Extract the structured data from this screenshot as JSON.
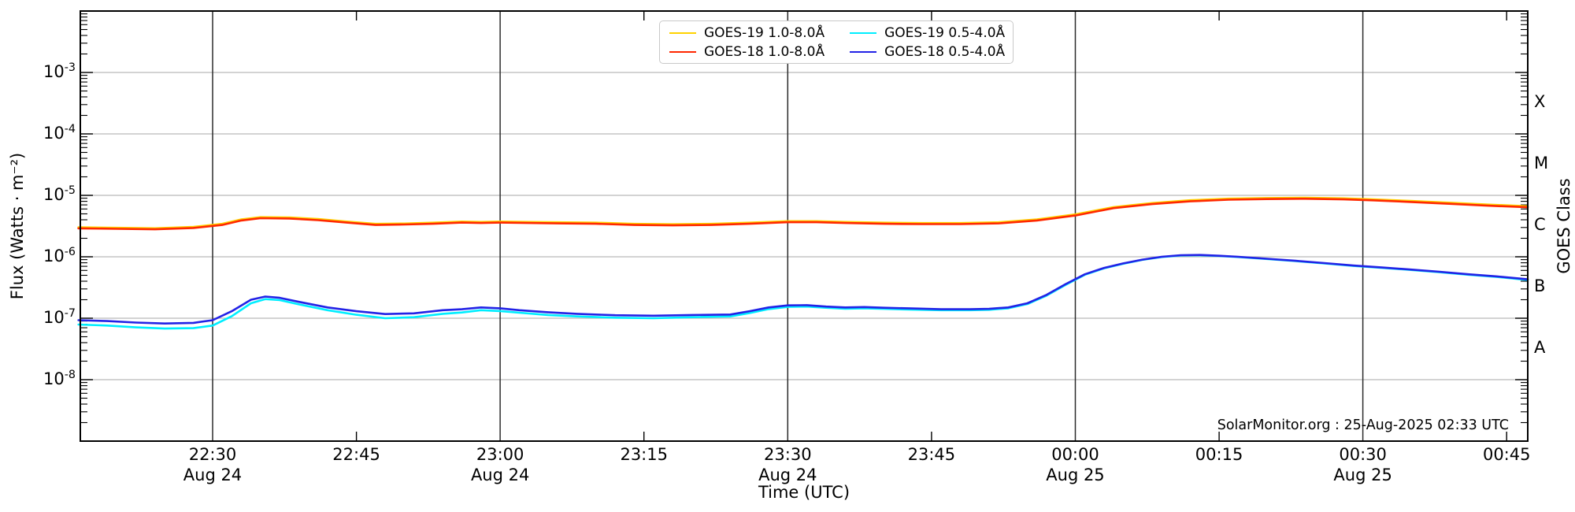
{
  "watermark": "SolarMonitor.org : 25-Aug-2025 02:33 UTC",
  "legend": {
    "items": [
      {
        "label": "GOES-19 1.0-8.0Å",
        "color": "#ffd200",
        "series": "goes19_long"
      },
      {
        "label": "GOES-18 1.0-8.0Å",
        "color": "#ff2800",
        "series": "goes18_long"
      },
      {
        "label": "GOES-19 0.5-4.0Å",
        "color": "#00eeff",
        "series": "goes19_short"
      },
      {
        "label": "GOES-18 0.5-4.0Å",
        "color": "#2222e6",
        "series": "goes18_short"
      }
    ]
  },
  "chart_data": {
    "type": "line",
    "title": "",
    "xlabel": "Time (UTC)",
    "ylabel_left": "Flux (Watts · m⁻²)",
    "ylabel_right": "GOES Class",
    "x_unit": "minutes since 22:00 UTC on Aug 24 (2025)",
    "x_range_minutes": [
      16.2,
      167.2
    ],
    "x_range_utc": [
      "22:16",
      "00:47"
    ],
    "y_range": [
      1e-09,
      0.01
    ],
    "y_scale": "log",
    "grid": {
      "vertical_dark_at_ticks": true,
      "horizontal_light_at_decades": true
    },
    "legend_position": "top-center",
    "x_ticks": [
      {
        "t": 30,
        "label": "22:30",
        "day": "Aug 24",
        "grid": true
      },
      {
        "t": 45,
        "label": "22:45",
        "day": "",
        "grid": false
      },
      {
        "t": 60,
        "label": "23:00",
        "day": "Aug 24",
        "grid": true
      },
      {
        "t": 75,
        "label": "23:15",
        "day": "",
        "grid": false
      },
      {
        "t": 90,
        "label": "23:30",
        "day": "Aug 24",
        "grid": true
      },
      {
        "t": 105,
        "label": "23:45",
        "day": "",
        "grid": false
      },
      {
        "t": 120,
        "label": "00:00",
        "day": "Aug 25",
        "grid": true
      },
      {
        "t": 135,
        "label": "00:15",
        "day": "",
        "grid": false
      },
      {
        "t": 150,
        "label": "00:30",
        "day": "Aug 25",
        "grid": true
      },
      {
        "t": 165,
        "label": "00:45",
        "day": "",
        "grid": false
      }
    ],
    "y_ticks": [
      {
        "exp": -3,
        "base": "10",
        "exp_text": "-3"
      },
      {
        "exp": -4,
        "base": "10",
        "exp_text": "-4"
      },
      {
        "exp": -5,
        "base": "10",
        "exp_text": "-5"
      },
      {
        "exp": -6,
        "base": "10",
        "exp_text": "-6"
      },
      {
        "exp": -7,
        "base": "10",
        "exp_text": "-7"
      },
      {
        "exp": -8,
        "base": "10",
        "exp_text": "-8"
      }
    ],
    "goes_class_labels": [
      {
        "label": "X",
        "exp": -3.5
      },
      {
        "label": "M",
        "exp": -4.5
      },
      {
        "label": "C",
        "exp": -5.5
      },
      {
        "label": "B",
        "exp": -6.5
      },
      {
        "label": "A",
        "exp": -7.5
      }
    ],
    "series": [
      {
        "name": "goes19_long",
        "label": "GOES-19 1.0-8.0Å",
        "color": "#ffd200",
        "width": 2.6,
        "points": [
          [
            16,
            3.02e-06
          ],
          [
            20,
            2.96e-06
          ],
          [
            24,
            2.91e-06
          ],
          [
            28,
            3.07e-06
          ],
          [
            31,
            3.43e-06
          ],
          [
            33,
            4.06e-06
          ],
          [
            35,
            4.42e-06
          ],
          [
            38,
            4.37e-06
          ],
          [
            41,
            4.11e-06
          ],
          [
            44,
            3.74e-06
          ],
          [
            47,
            3.43e-06
          ],
          [
            50,
            3.48e-06
          ],
          [
            53,
            3.59e-06
          ],
          [
            56,
            3.74e-06
          ],
          [
            58,
            3.69e-06
          ],
          [
            60,
            3.74e-06
          ],
          [
            63,
            3.69e-06
          ],
          [
            66,
            3.64e-06
          ],
          [
            70,
            3.59e-06
          ],
          [
            74,
            3.43e-06
          ],
          [
            78,
            3.38e-06
          ],
          [
            82,
            3.43e-06
          ],
          [
            86,
            3.59e-06
          ],
          [
            90,
            3.8e-06
          ],
          [
            93,
            3.8e-06
          ],
          [
            96,
            3.69e-06
          ],
          [
            100,
            3.59e-06
          ],
          [
            104,
            3.54e-06
          ],
          [
            108,
            3.54e-06
          ],
          [
            112,
            3.64e-06
          ],
          [
            116,
            4.06e-06
          ],
          [
            120,
            4.9e-06
          ],
          [
            124,
            6.45e-06
          ],
          [
            128,
            7.49e-06
          ],
          [
            132,
            8.32e-06
          ],
          [
            136,
            8.84e-06
          ],
          [
            140,
            9.05e-06
          ],
          [
            144,
            9.15e-06
          ],
          [
            148,
            8.94e-06
          ],
          [
            151,
            8.63e-06
          ],
          [
            155,
            8.11e-06
          ],
          [
            159,
            7.59e-06
          ],
          [
            163,
            7.07e-06
          ],
          [
            167.2,
            6.66e-06
          ]
        ]
      },
      {
        "name": "goes18_long",
        "label": "GOES-18 1.0-8.0Å",
        "color": "#ff2800",
        "width": 2.6,
        "points": [
          [
            16,
            2.9e-06
          ],
          [
            20,
            2.85e-06
          ],
          [
            24,
            2.8e-06
          ],
          [
            28,
            2.95e-06
          ],
          [
            31,
            3.3e-06
          ],
          [
            33,
            3.9e-06
          ],
          [
            35,
            4.25e-06
          ],
          [
            38,
            4.2e-06
          ],
          [
            41,
            3.95e-06
          ],
          [
            44,
            3.6e-06
          ],
          [
            47,
            3.3e-06
          ],
          [
            50,
            3.35e-06
          ],
          [
            53,
            3.45e-06
          ],
          [
            56,
            3.6e-06
          ],
          [
            58,
            3.55e-06
          ],
          [
            60,
            3.6e-06
          ],
          [
            63,
            3.55e-06
          ],
          [
            66,
            3.5e-06
          ],
          [
            70,
            3.45e-06
          ],
          [
            74,
            3.3e-06
          ],
          [
            78,
            3.25e-06
          ],
          [
            82,
            3.3e-06
          ],
          [
            86,
            3.45e-06
          ],
          [
            90,
            3.65e-06
          ],
          [
            93,
            3.65e-06
          ],
          [
            96,
            3.55e-06
          ],
          [
            100,
            3.45e-06
          ],
          [
            104,
            3.4e-06
          ],
          [
            108,
            3.4e-06
          ],
          [
            112,
            3.5e-06
          ],
          [
            116,
            3.9e-06
          ],
          [
            120,
            4.7e-06
          ],
          [
            124,
            6.2e-06
          ],
          [
            128,
            7.2e-06
          ],
          [
            132,
            8e-06
          ],
          [
            136,
            8.5e-06
          ],
          [
            140,
            8.7e-06
          ],
          [
            144,
            8.8e-06
          ],
          [
            148,
            8.6e-06
          ],
          [
            151,
            8.3e-06
          ],
          [
            155,
            7.8e-06
          ],
          [
            159,
            7.3e-06
          ],
          [
            163,
            6.8e-06
          ],
          [
            167.2,
            6.4e-06
          ]
        ]
      },
      {
        "name": "goes19_short",
        "label": "GOES-19 0.5-4.0Å",
        "color": "#00eeff",
        "width": 2.6,
        "points": [
          [
            16,
            7.9e-08
          ],
          [
            19,
            7.6e-08
          ],
          [
            22,
            7.1e-08
          ],
          [
            25,
            6.8e-08
          ],
          [
            28,
            6.9e-08
          ],
          [
            30,
            7.6e-08
          ],
          [
            32,
            1.08e-07
          ],
          [
            34,
            1.75e-07
          ],
          [
            35.5,
            2.05e-07
          ],
          [
            37,
            1.97e-07
          ],
          [
            39,
            1.68e-07
          ],
          [
            42,
            1.35e-07
          ],
          [
            45,
            1.14e-07
          ],
          [
            48,
            1e-07
          ],
          [
            51,
            1.04e-07
          ],
          [
            54,
            1.18e-07
          ],
          [
            56,
            1.24e-07
          ],
          [
            58,
            1.35e-07
          ],
          [
            60,
            1.31e-07
          ],
          [
            62,
            1.23e-07
          ],
          [
            65,
            1.13e-07
          ],
          [
            68,
            1.07e-07
          ],
          [
            72,
            1.02e-07
          ],
          [
            76,
            1e-07
          ],
          [
            80,
            1.04e-07
          ],
          [
            84,
            1.07e-07
          ],
          [
            86,
            1.21e-07
          ],
          [
            88,
            1.41e-07
          ],
          [
            90,
            1.53e-07
          ],
          [
            92,
            1.55e-07
          ],
          [
            94,
            1.48e-07
          ],
          [
            96,
            1.43e-07
          ],
          [
            98,
            1.45e-07
          ],
          [
            100,
            1.42e-07
          ],
          [
            103,
            1.38e-07
          ],
          [
            106,
            1.35e-07
          ],
          [
            109,
            1.35e-07
          ],
          [
            111,
            1.37e-07
          ],
          [
            113,
            1.45e-07
          ],
          [
            115,
            1.7e-07
          ],
          [
            117,
            2.33e-07
          ],
          [
            119,
            3.5e-07
          ],
          [
            121,
            5.1e-07
          ],
          [
            123,
            6.5e-07
          ],
          [
            125,
            7.7e-07
          ],
          [
            127,
            8.9e-07
          ],
          [
            129,
            9.9e-07
          ],
          [
            131,
            1.05e-06
          ],
          [
            133,
            1.06e-06
          ],
          [
            135,
            1.03e-06
          ],
          [
            137,
            9.9e-07
          ],
          [
            140,
            9.2e-07
          ],
          [
            143,
            8.5e-07
          ],
          [
            146,
            7.8e-07
          ],
          [
            149,
            7.1e-07
          ],
          [
            152,
            6.6e-07
          ],
          [
            155,
            6.1e-07
          ],
          [
            158,
            5.6e-07
          ],
          [
            161,
            5.1e-07
          ],
          [
            164,
            4.7e-07
          ],
          [
            167.2,
            4.2e-07
          ]
        ]
      },
      {
        "name": "goes18_short",
        "label": "GOES-18 0.5-4.0Å",
        "color": "#2222e6",
        "width": 2.6,
        "points": [
          [
            16,
            9.3e-08
          ],
          [
            19,
            9e-08
          ],
          [
            22,
            8.5e-08
          ],
          [
            25,
            8.2e-08
          ],
          [
            28,
            8.4e-08
          ],
          [
            30,
            9.3e-08
          ],
          [
            32,
            1.3e-07
          ],
          [
            34,
            2e-07
          ],
          [
            35.5,
            2.25e-07
          ],
          [
            37,
            2.15e-07
          ],
          [
            39,
            1.85e-07
          ],
          [
            42,
            1.5e-07
          ],
          [
            45,
            1.3e-07
          ],
          [
            48,
            1.17e-07
          ],
          [
            51,
            1.2e-07
          ],
          [
            54,
            1.35e-07
          ],
          [
            56,
            1.4e-07
          ],
          [
            58,
            1.5e-07
          ],
          [
            60,
            1.45e-07
          ],
          [
            62,
            1.35e-07
          ],
          [
            65,
            1.25e-07
          ],
          [
            68,
            1.18e-07
          ],
          [
            72,
            1.12e-07
          ],
          [
            76,
            1.1e-07
          ],
          [
            80,
            1.13e-07
          ],
          [
            84,
            1.15e-07
          ],
          [
            86,
            1.3e-07
          ],
          [
            88,
            1.5e-07
          ],
          [
            90,
            1.62e-07
          ],
          [
            92,
            1.63e-07
          ],
          [
            94,
            1.55e-07
          ],
          [
            96,
            1.5e-07
          ],
          [
            98,
            1.52e-07
          ],
          [
            100,
            1.48e-07
          ],
          [
            103,
            1.44e-07
          ],
          [
            106,
            1.4e-07
          ],
          [
            109,
            1.4e-07
          ],
          [
            111,
            1.42e-07
          ],
          [
            113,
            1.5e-07
          ],
          [
            115,
            1.75e-07
          ],
          [
            117,
            2.4e-07
          ],
          [
            119,
            3.6e-07
          ],
          [
            121,
            5.2e-07
          ],
          [
            123,
            6.6e-07
          ],
          [
            125,
            7.8e-07
          ],
          [
            127,
            9e-07
          ],
          [
            129,
            1e-06
          ],
          [
            131,
            1.06e-06
          ],
          [
            133,
            1.07e-06
          ],
          [
            135,
            1.04e-06
          ],
          [
            137,
            1e-06
          ],
          [
            140,
            9.3e-07
          ],
          [
            143,
            8.6e-07
          ],
          [
            146,
            7.9e-07
          ],
          [
            149,
            7.2e-07
          ],
          [
            152,
            6.7e-07
          ],
          [
            155,
            6.2e-07
          ],
          [
            158,
            5.7e-07
          ],
          [
            161,
            5.2e-07
          ],
          [
            164,
            4.8e-07
          ],
          [
            167.2,
            4.3e-07
          ]
        ]
      }
    ],
    "colors": {
      "axis": "#000000",
      "grid_dark": "#2b2b2b",
      "grid_light": "#b9b9b9",
      "background": "#ffffff"
    }
  }
}
